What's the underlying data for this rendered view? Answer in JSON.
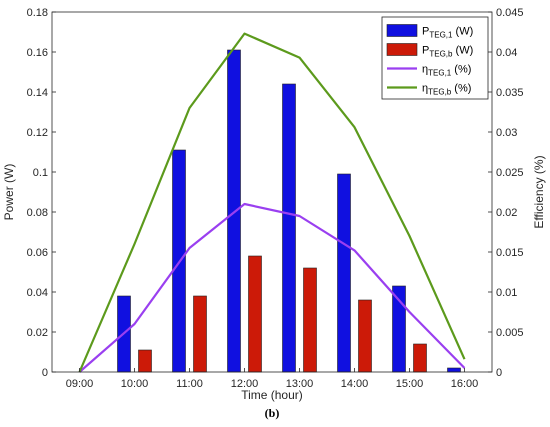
{
  "chart_data": {
    "type": "bar",
    "categories": [
      "09:00",
      "10:00",
      "11:00",
      "12:00",
      "13:00",
      "14:00",
      "15:00",
      "16:00"
    ],
    "xlabel": "Time (hour)",
    "ylabel_left": "Power (W)",
    "ylabel_right": "Efficiency (%)",
    "ylim_left": [
      0,
      0.18
    ],
    "ylim_right": [
      0,
      0.045
    ],
    "yticks_left": [
      "0",
      "0.02",
      "0.04",
      "0.06",
      "0.08",
      "0.1",
      "0.12",
      "0.14",
      "0.16",
      "0.18"
    ],
    "yticks_right": [
      "0",
      "0.005",
      "0.01",
      "0.015",
      "0.02",
      "0.025",
      "0.03",
      "0.035",
      "0.04",
      "0.045"
    ],
    "caption": "(b)",
    "legend_position": "top-right",
    "grid": false,
    "series": [
      {
        "name": "P_TEG,1 (W)",
        "legend_main": "P",
        "legend_sub": "TEG,1",
        "legend_unit": " (W)",
        "kind": "bar",
        "axis": "left",
        "color": "#1010e0",
        "values": [
          0,
          0.038,
          0.111,
          0.161,
          0.144,
          0.099,
          0.043,
          0.002
        ]
      },
      {
        "name": "P_TEG,b (W)",
        "legend_main": "P",
        "legend_sub": "TEG,b",
        "legend_unit": " (W)",
        "kind": "bar",
        "axis": "left",
        "color": "#cc1a08",
        "values": [
          0,
          0.011,
          0.038,
          0.058,
          0.052,
          0.036,
          0.014,
          0
        ]
      },
      {
        "name": "η_TEG,1 (%)",
        "legend_main": "η",
        "legend_sub": "TEG,1",
        "legend_unit": " (%)",
        "kind": "line",
        "axis": "right",
        "color": "#9a3ff0",
        "values": [
          0,
          0.006,
          0.0155,
          0.021,
          0.0195,
          0.0152,
          0.0075,
          0.0005
        ]
      },
      {
        "name": "η_TEG,b (%)",
        "legend_main": "η",
        "legend_sub": "TEG,b",
        "legend_unit": " (%)",
        "kind": "line",
        "axis": "right",
        "color": "#5c9a1c",
        "values": [
          0,
          0.016,
          0.033,
          0.0423,
          0.0393,
          0.0306,
          0.017,
          0.0016
        ]
      }
    ]
  }
}
